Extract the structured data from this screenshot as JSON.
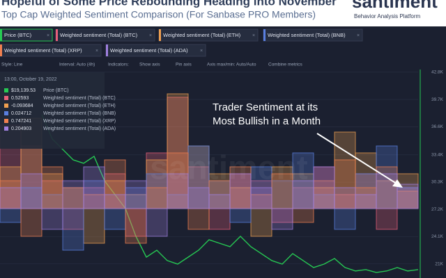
{
  "header": {
    "title": "Hopeful of Some Price Rebounding Heading into November",
    "subtitle": "Top Cap Weighted Sentiment Comparison (For Sanbase PRO Members)",
    "logo": "santiment",
    "tagline": "Behavior Analysis Platform"
  },
  "toolbar": [
    "Style: Line",
    "Interval: Auto (4h)",
    "Indicators:",
    "Show axis",
    "Pin axis",
    "Axis max/min: Auto/Auto",
    "Combine metrics"
  ],
  "tooltip": {
    "date": "13:00, October 19, 2022",
    "price": {
      "value": 19139.53,
      "label": "$19,139.53"
    },
    "values": [
      0.52593,
      -0.093684,
      0.024712,
      0.747241,
      0.204903
    ]
  },
  "chart_data": {
    "type": "bar",
    "watermark": "santiment",
    "annotation": [
      "Trader Sentiment at its",
      "Most Bullish in a Month"
    ],
    "ylim": [
      19400,
      43100
    ],
    "yticks": [
      {
        "value": 42800,
        "label": "42.8K"
      },
      {
        "value": 39700,
        "label": "39.7K"
      },
      {
        "value": 36600,
        "label": "36.6K"
      },
      {
        "value": 33400,
        "label": "33.4K"
      },
      {
        "value": 30300,
        "label": "30.3K"
      },
      {
        "value": 27200,
        "label": "27.2K"
      },
      {
        "value": 24100,
        "label": "24.1K"
      },
      {
        "value": 21000,
        "label": "21K"
      }
    ],
    "y2lim": [
      -1,
      2
    ],
    "grid": true,
    "series": [
      {
        "name": "Price (BTC)",
        "color": "#26c953",
        "axis": "y",
        "values": [
          null,
          null,
          null,
          null,
          37970,
          35200,
          34020,
          32830,
          32440,
          33230,
          30460,
          28880,
          27300,
          24140,
          21770,
          22560,
          21380,
          20980,
          21770,
          22560,
          23750,
          23350,
          22960,
          24140,
          22960,
          22170,
          21380,
          20980,
          22170,
          21380,
          20590,
          20980,
          21610,
          20590,
          20200,
          20350,
          20030,
          20200,
          20590,
          20200,
          20350
        ]
      },
      {
        "name": "Weighted sentiment (Total) (BTC)",
        "color": "#e8607a",
        "axis": "y2",
        "values": [
          1.2,
          0.9,
          0.4,
          -0.3,
          0.3,
          0.5,
          -0.4,
          0.8,
          1.6,
          0.6,
          -0.3,
          0.5,
          0.4,
          -0.2,
          0.3,
          0.6,
          0.2,
          0.5,
          -0.3,
          0.3
        ]
      },
      {
        "name": "Weighted sentiment (Total) (ETH)",
        "color": "#f0a050",
        "axis": "y2",
        "values": [
          0.6,
          1.3,
          0.5,
          0.3,
          -0.5,
          0.4,
          0.2,
          0.7,
          1.65,
          0.9,
          0.5,
          0.3,
          -0.4,
          0.6,
          0.5,
          0.3,
          1.1,
          0.8,
          0.4,
          0.5
        ]
      },
      {
        "name": "Weighted sentiment (Total) (BNB)",
        "color": "#5a7fe0",
        "axis": "y2",
        "values": [
          -0.2,
          0.3,
          0.2,
          -0.6,
          0.4,
          -0.3,
          0.3,
          0.5,
          0.2,
          0.9,
          0.4,
          -0.2,
          0.6,
          0.4,
          0.8,
          0.2,
          -0.3,
          0.5,
          0.9,
          0.3
        ]
      },
      {
        "name": "Weighted sentiment (Total) (XRP)",
        "color": "#f08050",
        "axis": "y2",
        "values": [
          0.4,
          -0.4,
          0.6,
          0.3,
          0.2,
          0.7,
          -0.5,
          0.3,
          0.8,
          -0.3,
          0.4,
          0.6,
          0.2,
          0.5,
          -0.2,
          0.4,
          0.7,
          0.3,
          0.6,
          0.25
        ]
      },
      {
        "name": "Weighted sentiment (Total) (ADA)",
        "color": "#a080e0",
        "axis": "y2",
        "values": [
          0.3,
          0.5,
          -0.3,
          0.4,
          0.6,
          0.2,
          0.4,
          -0.4,
          0.5,
          0.3,
          0.2,
          0.5,
          0.3,
          -0.3,
          0.4,
          0.6,
          0.3,
          0.2,
          0.5,
          0.35
        ]
      }
    ]
  }
}
